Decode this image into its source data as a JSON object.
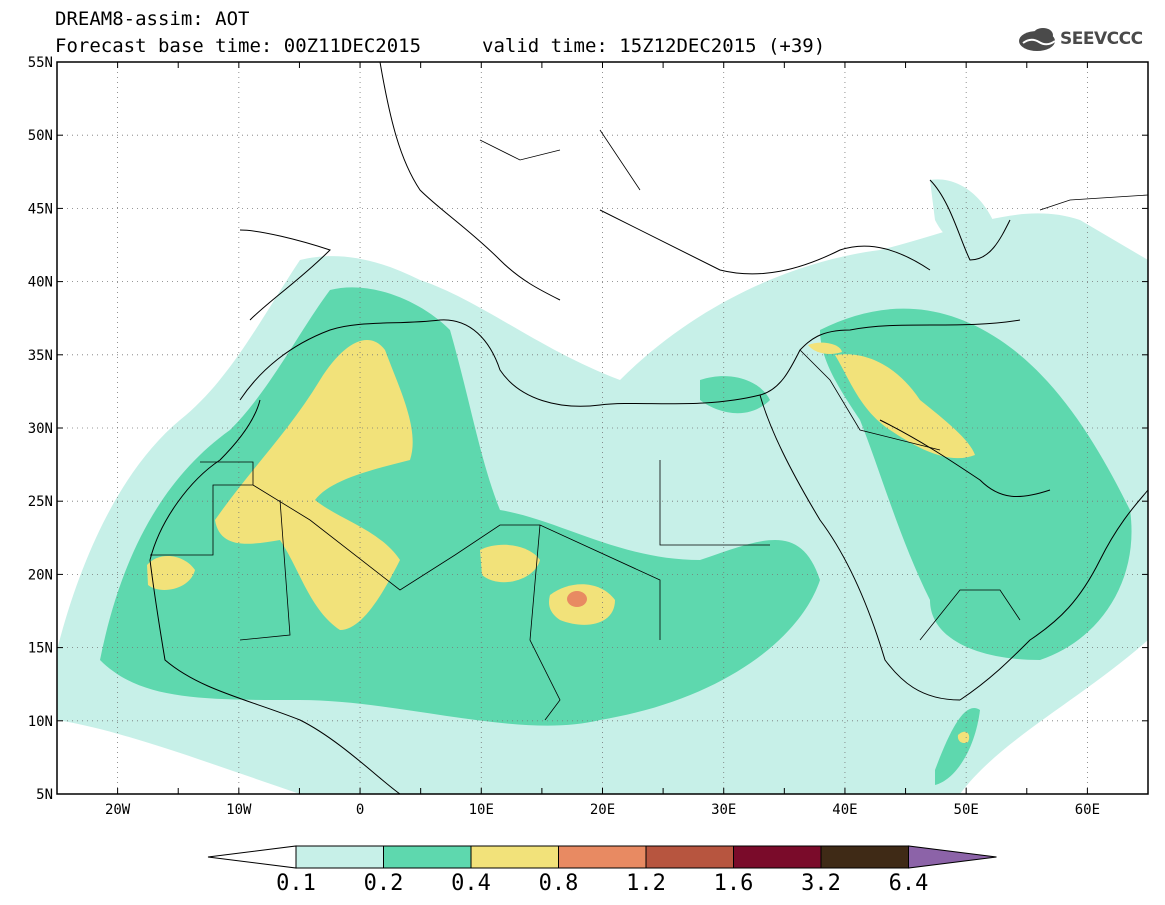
{
  "header": {
    "title_line1": "DREAM8-assim: AOT",
    "title_line2": "Forecast base time: 00Z11DEC2015",
    "valid_time": "valid time: 15Z12DEC2015 (+39)",
    "logo_text": "SEEVCCC"
  },
  "map": {
    "lat_labels": [
      "55N",
      "50N",
      "45N",
      "40N",
      "35N",
      "30N",
      "25N",
      "20N",
      "15N",
      "10N",
      "5N"
    ],
    "lon_labels": [
      "20W",
      "10W",
      "0",
      "10E",
      "20E",
      "30E",
      "40E",
      "50E",
      "60E"
    ],
    "lat_range": [
      5,
      55
    ],
    "lon_range": [
      -25,
      65
    ],
    "grid": "dotted",
    "colors": {
      "c01": "#c7f0e8",
      "c02": "#5ed8ae",
      "c04": "#f2e27a",
      "c08": "#e88a62",
      "c12": "#b7553f",
      "c16": "#7a0b2a",
      "c32": "#3f2a16",
      "c64": "#8c63a8"
    }
  },
  "legend": {
    "labels": [
      "0.1",
      "0.2",
      "0.4",
      "0.8",
      "1.2",
      "1.6",
      "3.2",
      "6.4"
    ],
    "colors": [
      "#ffffff",
      "#c7f0e8",
      "#5ed8ae",
      "#f2e27a",
      "#e88a62",
      "#b7553f",
      "#7a0b2a",
      "#3f2a16",
      "#8c63a8"
    ]
  }
}
